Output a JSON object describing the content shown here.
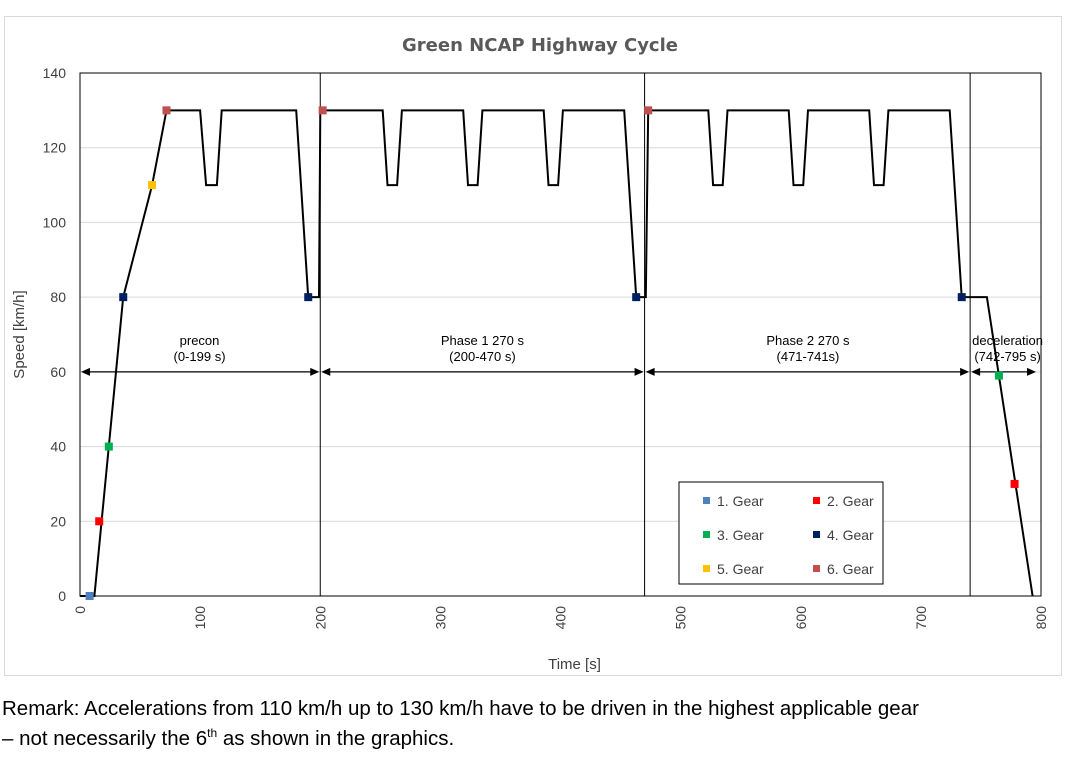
{
  "chart_data": {
    "type": "line",
    "title": "Green NCAP Highway Cycle",
    "xlabel": "Time [s]",
    "ylabel": "Speed [km/h]",
    "xlim": [
      0,
      800
    ],
    "ylim": [
      0,
      140
    ],
    "x_ticks": [
      0,
      100,
      200,
      300,
      400,
      500,
      600,
      700,
      800
    ],
    "y_ticks": [
      0,
      20,
      40,
      60,
      80,
      100,
      120,
      140
    ],
    "grid": "horizontal",
    "legend_position": "bottom-right",
    "series": [
      {
        "type": "line",
        "color": "#000000",
        "x": [
          0,
          12,
          36,
          60,
          72,
          100,
          105,
          114,
          118,
          180,
          190,
          196,
          199,
          200,
          202,
          252,
          256,
          264,
          268,
          319,
          323,
          331,
          335,
          386,
          390,
          398,
          402,
          453,
          463,
          470,
          471,
          473,
          523,
          527,
          535,
          539,
          590,
          594,
          602,
          606,
          657,
          661,
          669,
          673,
          724,
          734,
          741,
          755,
          793
        ],
        "y": [
          0,
          0,
          80,
          110,
          130,
          130,
          110,
          110,
          130,
          130,
          80,
          80,
          80,
          130,
          130,
          130,
          110,
          110,
          130,
          130,
          110,
          110,
          130,
          130,
          110,
          110,
          130,
          130,
          80,
          80,
          80,
          130,
          130,
          110,
          110,
          130,
          130,
          110,
          110,
          130,
          130,
          110,
          110,
          130,
          130,
          80,
          80,
          80,
          0
        ]
      }
    ],
    "markers": [
      {
        "gear": "1. Gear",
        "color": "#4f81bd",
        "x": 8,
        "y": 0
      },
      {
        "gear": "2. Gear",
        "color": "#ff0000",
        "x": 16,
        "y": 20
      },
      {
        "gear": "3. Gear",
        "color": "#00b050",
        "x": 24,
        "y": 40
      },
      {
        "gear": "4. Gear",
        "color": "#002060",
        "x": 36,
        "y": 80
      },
      {
        "gear": "5. Gear",
        "color": "#ffc000",
        "x": 60,
        "y": 110
      },
      {
        "gear": "6. Gear",
        "color": "#c0504d",
        "x": 72,
        "y": 130
      },
      {
        "gear": "4. Gear",
        "color": "#002060",
        "x": 190,
        "y": 80
      },
      {
        "gear": "6. Gear",
        "color": "#c0504d",
        "x": 202,
        "y": 130
      },
      {
        "gear": "4. Gear",
        "color": "#002060",
        "x": 463,
        "y": 80
      },
      {
        "gear": "6. Gear",
        "color": "#c0504d",
        "x": 473,
        "y": 130
      },
      {
        "gear": "4. Gear",
        "color": "#002060",
        "x": 734,
        "y": 80
      },
      {
        "gear": "3. Gear",
        "color": "#00b050",
        "x": 765,
        "y": 59
      },
      {
        "gear": "2. Gear",
        "color": "#ff0000",
        "x": 778,
        "y": 30
      }
    ],
    "phase_dividers": [
      200,
      470,
      741
    ],
    "phases": [
      {
        "label": "precon",
        "range": "(0-199  s)",
        "start": 0,
        "end": 199
      },
      {
        "label": "Phase 1 270 s",
        "range": "(200-470  s)",
        "start": 200,
        "end": 470
      },
      {
        "label": "Phase 2 270 s",
        "range": "(471-741s)",
        "start": 471,
        "end": 741
      },
      {
        "label": "deceleration",
        "range": "(742-795  s)",
        "start": 742,
        "end": 795
      }
    ],
    "phase_arrow_y": 60,
    "legend": [
      {
        "label": "1. Gear",
        "color": "#4f81bd"
      },
      {
        "label": "2. Gear",
        "color": "#ff0000"
      },
      {
        "label": "3. Gear",
        "color": "#00b050"
      },
      {
        "label": "4. Gear",
        "color": "#002060"
      },
      {
        "label": "5. Gear",
        "color": "#ffc000"
      },
      {
        "label": "6. Gear",
        "color": "#c0504d"
      }
    ]
  },
  "remark": {
    "line1": "Remark: Accelerations from 110 km/h up to 130 km/h have to be driven in the highest applicable gear",
    "line2_prefix": "– not necessarily the 6",
    "line2_sup": "th",
    "line2_suffix": " as shown in the graphics."
  }
}
